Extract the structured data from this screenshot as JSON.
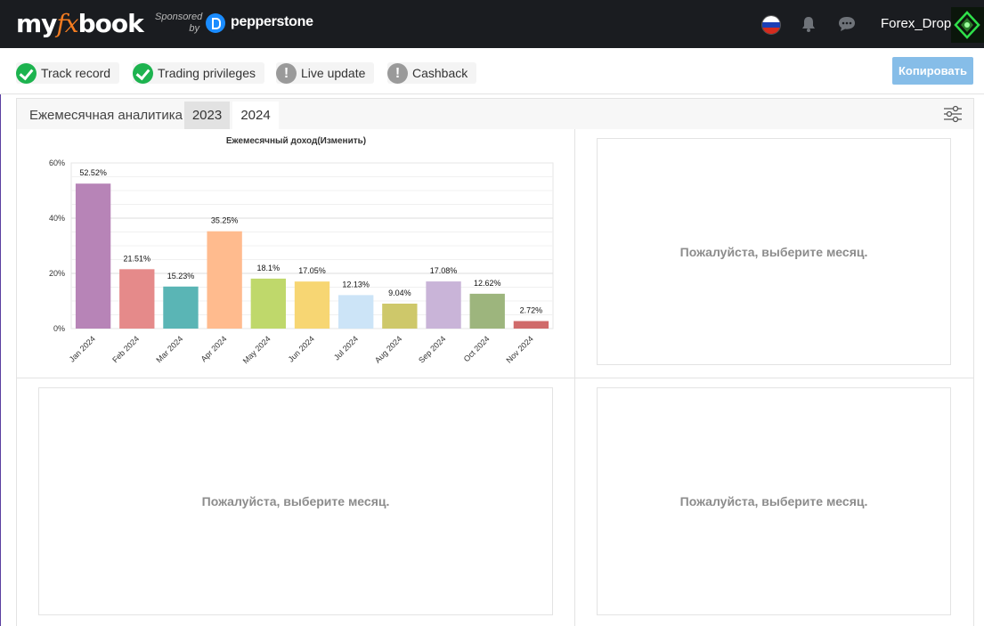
{
  "header": {
    "logo_pre": "my",
    "logo_fx": "fx",
    "logo_post": "book",
    "sponsored": "Sponsored",
    "by": "by",
    "sponsor_name": "pepperstone",
    "username": "Forex_Drop",
    "icons": [
      "russia-flag-icon",
      "bell-icon",
      "chat-icon",
      "avatar"
    ]
  },
  "badges": [
    {
      "label": "Track record",
      "status": "ok"
    },
    {
      "label": "Trading privileges",
      "status": "ok"
    },
    {
      "label": "Live update",
      "status": "warn"
    },
    {
      "label": "Cashback",
      "status": "warn"
    }
  ],
  "copy_button": "Копировать",
  "tabs": {
    "title": "Ежемесячная аналитика",
    "years": [
      "2023",
      "2024"
    ],
    "selected": "2024"
  },
  "empty_message": "Пожалуйста, выберите месяц.",
  "colors": {
    "topbar": "#1a1c20",
    "accent": "#f47c20",
    "ok": "#1db34f",
    "copy_button": "#86bde8"
  },
  "chart_data": {
    "type": "bar",
    "title": "Ежемесячный доход(Изменить)",
    "categories": [
      "Jan 2024",
      "Feb 2024",
      "Mar 2024",
      "Apr 2024",
      "May 2024",
      "Jun 2024",
      "Jul 2024",
      "Aug 2024",
      "Sep 2024",
      "Oct 2024",
      "Nov 2024"
    ],
    "values": [
      52.52,
      21.51,
      15.23,
      35.25,
      18.1,
      17.05,
      12.13,
      9.04,
      17.08,
      12.62,
      2.72
    ],
    "labels": [
      "52.52%",
      "21.51%",
      "15.23%",
      "35.25%",
      "18.1%",
      "17.05%",
      "12.13%",
      "9.04%",
      "17.08%",
      "12.62%",
      "2.72%"
    ],
    "colors": [
      "#b784b7",
      "#e58a8a",
      "#5ab5b5",
      "#ffbb8e",
      "#bfd86b",
      "#f7d673",
      "#cce4f7",
      "#cec86a",
      "#c9b4d8",
      "#9db57d",
      "#d06b6b"
    ],
    "yticks": [
      "0%",
      "20%",
      "40%",
      "60%"
    ],
    "ylim": [
      0,
      60
    ],
    "grid": true
  }
}
